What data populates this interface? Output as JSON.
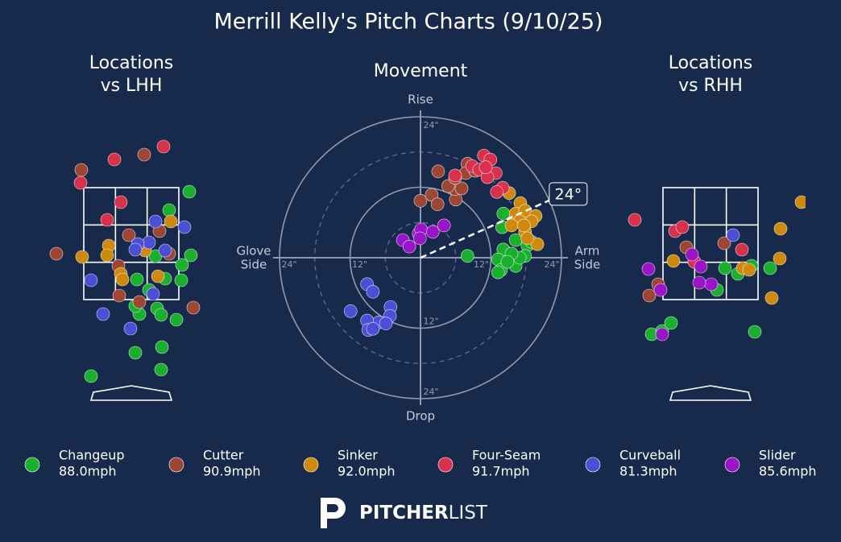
{
  "title": "Merrill Kelly's Pitch Charts (9/10/25)",
  "branding": {
    "bold": "PITCHER",
    "light": "LIST"
  },
  "chart_data": [
    {
      "type": "scatter",
      "title": [
        "Locations",
        "vs LHH"
      ],
      "xlim": [
        -1.2,
        1.2
      ],
      "ylim": [
        0,
        4
      ],
      "series": [
        {
          "name": "Changeup",
          "color": "#18b02c",
          "x": [
            0.72,
            0.47,
            0.74,
            0.63,
            0.62,
            0.42,
            0.3,
            0.07,
            0.22,
            0.32,
            0.1,
            0.05,
            0.37,
            0.56,
            0.05,
            0.38,
            0.37,
            -0.5
          ],
          "y": [
            2.62,
            2.39,
            1.83,
            1.71,
            1.52,
            1.54,
            1.82,
            1.53,
            1.4,
            1.17,
            1.1,
            1.2,
            1.09,
            1.03,
            0.62,
            0.69,
            0.41,
            0.33
          ]
        },
        {
          "name": "Cutter",
          "color": "#9e4634",
          "x": [
            -0.62,
            0.16,
            -0.03,
            0.35,
            0.47,
            -0.16,
            -0.15,
            0.1,
            0.77,
            -0.93
          ],
          "y": [
            2.89,
            3.08,
            2.08,
            2.13,
            1.85,
            1.7,
            1.33,
            1.25,
            1.18,
            1.85
          ]
        },
        {
          "name": "Sinker",
          "color": "#cf8a0e",
          "x": [
            0.49,
            -0.28,
            -0.3,
            -0.61,
            0.17,
            -0.13,
            -0.11,
            0.33
          ],
          "y": [
            2.25,
            1.95,
            1.83,
            1.81,
            1.89,
            1.6,
            1.53,
            1.57
          ]
        },
        {
          "name": "Four-Seam",
          "color": "#d9304b",
          "x": [
            0.4,
            -0.21,
            -0.63,
            -0.13,
            -0.3
          ],
          "y": [
            3.18,
            3.02,
            2.73,
            2.49,
            2.27
          ]
        },
        {
          "name": "Curveball",
          "color": "#4a4fd6",
          "x": [
            0.3,
            0.66,
            0.22,
            0.08,
            0.05,
            0.42,
            -0.5,
            0.27,
            -0.35,
            -0.01
          ],
          "y": [
            2.25,
            2.18,
            1.99,
            1.97,
            1.9,
            1.89,
            1.52,
            1.35,
            1.1,
            0.92
          ]
        },
        {
          "name": "Slider",
          "color": "#9a14c8",
          "x": [],
          "y": []
        }
      ]
    },
    {
      "type": "polar",
      "title": "Movement",
      "rlim": [
        0,
        24
      ],
      "rticks": [
        {
          "value": 12,
          "label": "12\""
        },
        {
          "value": 24,
          "label": "24\""
        }
      ],
      "labels": {
        "top": "Rise",
        "bottom": "Drop",
        "left": [
          "Glove",
          "Side"
        ],
        "right": [
          "Arm",
          "Side"
        ]
      },
      "arm_angle": {
        "value": 24,
        "label": "24°"
      },
      "series": [
        {
          "name": "Changeup",
          "color": "#18b02c",
          "velocity": 88.0,
          "velocity_label": "88.0mph",
          "x": [
            14.1,
            13.9,
            16.2,
            18.2,
            17.8,
            14.1,
            13.2,
            13.7,
            16.2,
            16.9,
            8.0,
            13.2,
            15.5,
            18.9,
            14.8
          ],
          "y": [
            7.5,
            5.2,
            3.0,
            2.1,
            0.3,
            1.4,
            -0.3,
            -2.1,
            -1.4,
            0.0,
            0.3,
            -2.5,
            0.7,
            2.7,
            -0.7
          ]
        },
        {
          "name": "Cutter",
          "color": "#9e4634",
          "velocity": 90.9,
          "velocity_label": "90.9mph",
          "x": [
            3.0,
            0.0,
            1.9,
            2.9,
            6.0,
            5.9,
            4.7,
            7.0,
            8.0,
            7.7,
            9.3,
            5.9
          ],
          "y": [
            14.7,
            9.7,
            10.7,
            9.1,
            9.9,
            11.7,
            12.2,
            11.8,
            16.0,
            14.4,
            14.8,
            13.6
          ]
        },
        {
          "name": "Sinker",
          "color": "#cf8a0e",
          "velocity": 92.0,
          "velocity_label": "92.0mph",
          "x": [
            15.1,
            17.0,
            16.2,
            17.8,
            19.6,
            16.9,
            18.9,
            17.8,
            15.5,
            19.9,
            18.2,
            17.6
          ],
          "y": [
            11.0,
            9.3,
            7.5,
            8.0,
            7.1,
            6.2,
            6.2,
            4.4,
            5.5,
            2.3,
            3.3,
            5.5
          ]
        },
        {
          "name": "Four-Seam",
          "color": "#d9304b",
          "velocity": 91.7,
          "velocity_label": "91.7mph",
          "x": [
            10.8,
            11.9,
            8.8,
            10.0,
            12.8,
            11.4,
            14.0,
            13.0,
            5.9,
            11.1
          ],
          "y": [
            17.4,
            16.7,
            15.6,
            15.0,
            14.4,
            13.7,
            11.9,
            11.2,
            14.0,
            15.4
          ]
        },
        {
          "name": "Curveball",
          "color": "#4a4fd6",
          "velocity": 81.3,
          "velocity_label": "81.3mph",
          "x": [
            -9.1,
            -8.1,
            -11.9,
            -5.1,
            -5.2,
            -7.1,
            -9.1,
            -8.9,
            -8.1,
            -5.9
          ],
          "y": [
            -4.5,
            -5.8,
            -9.1,
            -8.4,
            -9.9,
            -11.0,
            -10.7,
            -12.3,
            -12.1,
            -11.2
          ]
        },
        {
          "name": "Slider",
          "color": "#9a14c8",
          "velocity": 85.6,
          "velocity_label": "85.6mph",
          "x": [
            -3.0,
            -1.9,
            -0.3,
            0.1,
            2.1,
            4.0,
            -0.1
          ],
          "y": [
            3.0,
            1.9,
            4.1,
            4.8,
            4.4,
            5.5,
            3.3
          ]
        }
      ]
    },
    {
      "type": "scatter",
      "title": [
        "Locations",
        "vs RHH"
      ],
      "xlim": [
        -1.2,
        1.2
      ],
      "ylim": [
        0,
        4
      ],
      "series": [
        {
          "name": "Changeup",
          "color": "#18b02c",
          "x": [
            -0.73,
            -0.6,
            -0.49,
            0.55,
            0.74,
            0.18,
            0.34,
            0.08,
            0.51
          ],
          "y": [
            0.85,
            0.89,
            0.99,
            0.88,
            1.67,
            1.67,
            1.6,
            1.4,
            1.7
          ]
        },
        {
          "name": "Cutter",
          "color": "#9e4634",
          "x": [
            -0.3,
            0.17,
            -0.65,
            -0.76
          ],
          "y": [
            1.93,
            1.98,
            1.47,
            1.33
          ]
        },
        {
          "name": "Sinker",
          "color": "#cf8a0e",
          "x": [
            0.87,
            0.86,
            0.76,
            -0.46,
            0.4,
            0.48,
            1.13
          ],
          "y": [
            2.16,
            1.79,
            1.3,
            1.76,
            1.67,
            1.65,
            2.49
          ]
        },
        {
          "name": "Four-Seam",
          "color": "#d9304b",
          "x": [
            -0.94,
            -0.44,
            -0.35,
            0.39,
            -0.2
          ],
          "y": [
            2.27,
            2.13,
            2.18,
            1.9,
            1.75
          ]
        },
        {
          "name": "Curveball",
          "color": "#4a4fd6",
          "x": [
            0.28
          ],
          "y": [
            2.08
          ]
        },
        {
          "name": "Slider",
          "color": "#9a14c8",
          "x": [
            -0.77,
            -0.23,
            -0.12,
            0.01,
            -0.14,
            -0.62,
            -0.6
          ],
          "y": [
            1.66,
            1.84,
            1.69,
            1.47,
            1.49,
            1.4,
            0.85
          ]
        }
      ]
    }
  ]
}
